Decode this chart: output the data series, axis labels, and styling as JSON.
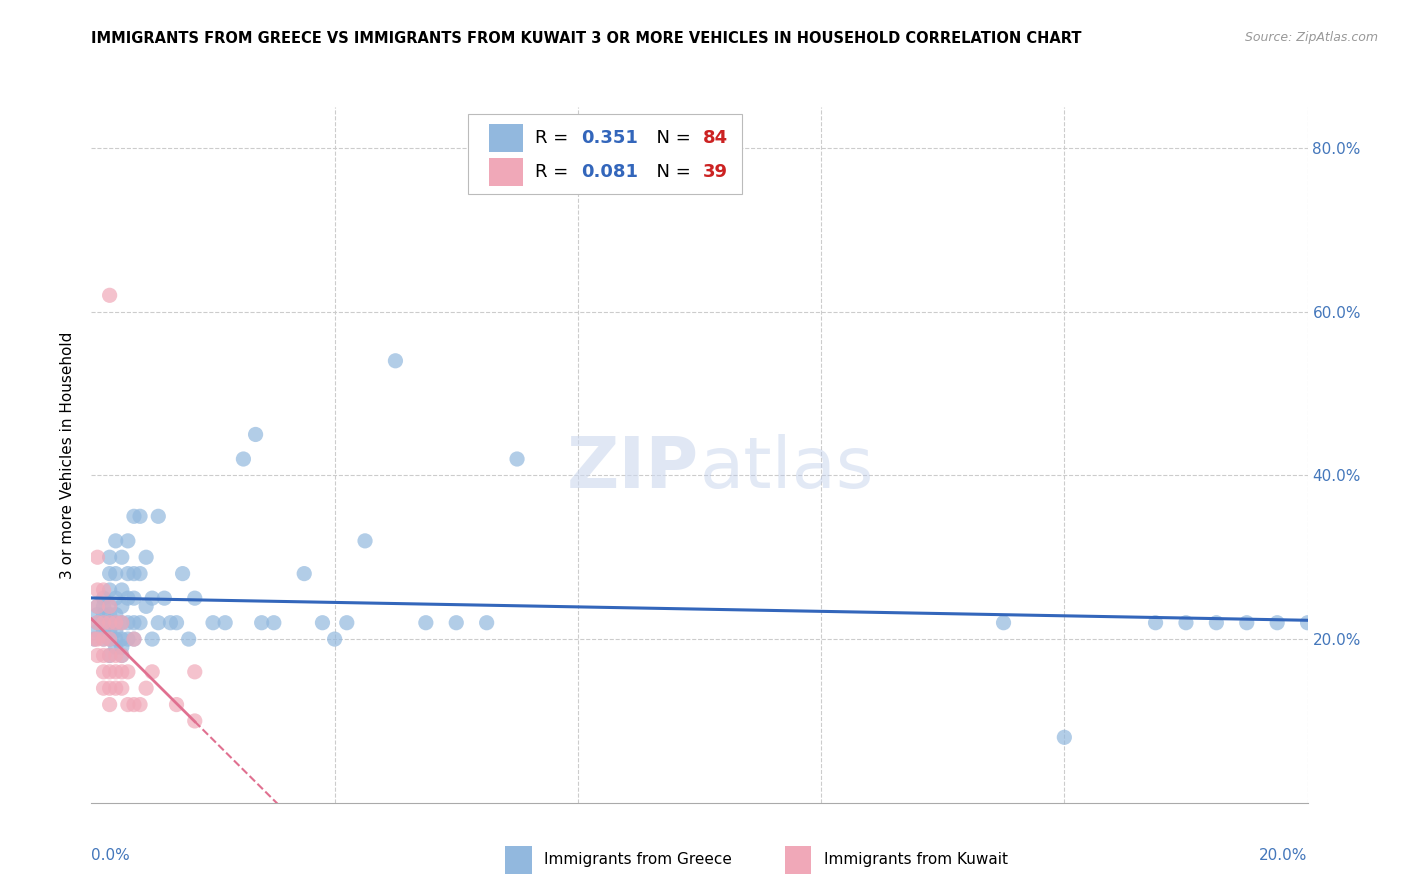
{
  "title": "IMMIGRANTS FROM GREECE VS IMMIGRANTS FROM KUWAIT 3 OR MORE VEHICLES IN HOUSEHOLD CORRELATION CHART",
  "source": "Source: ZipAtlas.com",
  "ylabel": "3 or more Vehicles in Household",
  "greece_color": "#92b8de",
  "kuwait_color": "#f0a8b8",
  "greece_line_color": "#3366bb",
  "kuwait_line_color": "#e07090",
  "background_color": "#ffffff",
  "grid_color": "#cccccc",
  "watermark": "ZIPatlas",
  "R_greece": 0.351,
  "N_greece": 84,
  "R_kuwait": 0.081,
  "N_kuwait": 39,
  "xmin": 0.0,
  "xmax": 0.2,
  "ymin": 0.0,
  "ymax": 0.85,
  "greece_points_x": [
    0.0005,
    0.001,
    0.001,
    0.001,
    0.001,
    0.002,
    0.002,
    0.002,
    0.002,
    0.002,
    0.002,
    0.003,
    0.003,
    0.003,
    0.003,
    0.003,
    0.003,
    0.003,
    0.003,
    0.003,
    0.004,
    0.004,
    0.004,
    0.004,
    0.004,
    0.004,
    0.004,
    0.004,
    0.005,
    0.005,
    0.005,
    0.005,
    0.005,
    0.005,
    0.005,
    0.006,
    0.006,
    0.006,
    0.006,
    0.006,
    0.007,
    0.007,
    0.007,
    0.007,
    0.007,
    0.008,
    0.008,
    0.008,
    0.009,
    0.009,
    0.01,
    0.01,
    0.011,
    0.011,
    0.012,
    0.013,
    0.014,
    0.015,
    0.016,
    0.017,
    0.02,
    0.022,
    0.025,
    0.027,
    0.028,
    0.03,
    0.035,
    0.038,
    0.04,
    0.042,
    0.045,
    0.05,
    0.055,
    0.06,
    0.065,
    0.07,
    0.15,
    0.16,
    0.175,
    0.18,
    0.185,
    0.19,
    0.195,
    0.2
  ],
  "greece_points_y": [
    0.2,
    0.21,
    0.22,
    0.23,
    0.24,
    0.2,
    0.21,
    0.22,
    0.23,
    0.24,
    0.25,
    0.18,
    0.2,
    0.21,
    0.22,
    0.23,
    0.24,
    0.26,
    0.28,
    0.3,
    0.19,
    0.2,
    0.21,
    0.22,
    0.23,
    0.25,
    0.28,
    0.32,
    0.18,
    0.19,
    0.2,
    0.22,
    0.24,
    0.26,
    0.3,
    0.2,
    0.22,
    0.25,
    0.28,
    0.32,
    0.2,
    0.22,
    0.25,
    0.28,
    0.35,
    0.22,
    0.28,
    0.35,
    0.24,
    0.3,
    0.2,
    0.25,
    0.22,
    0.35,
    0.25,
    0.22,
    0.22,
    0.28,
    0.2,
    0.25,
    0.22,
    0.22,
    0.42,
    0.45,
    0.22,
    0.22,
    0.28,
    0.22,
    0.2,
    0.22,
    0.32,
    0.54,
    0.22,
    0.22,
    0.22,
    0.42,
    0.22,
    0.08,
    0.22,
    0.22,
    0.22,
    0.22,
    0.22,
    0.22
  ],
  "kuwait_points_x": [
    0.0005,
    0.001,
    0.001,
    0.001,
    0.001,
    0.001,
    0.001,
    0.002,
    0.002,
    0.002,
    0.002,
    0.002,
    0.002,
    0.003,
    0.003,
    0.003,
    0.003,
    0.003,
    0.003,
    0.003,
    0.003,
    0.004,
    0.004,
    0.004,
    0.004,
    0.005,
    0.005,
    0.005,
    0.005,
    0.006,
    0.006,
    0.007,
    0.007,
    0.008,
    0.009,
    0.01,
    0.014,
    0.017,
    0.017
  ],
  "kuwait_points_y": [
    0.2,
    0.18,
    0.2,
    0.22,
    0.24,
    0.26,
    0.3,
    0.14,
    0.16,
    0.18,
    0.2,
    0.22,
    0.26,
    0.12,
    0.14,
    0.16,
    0.18,
    0.2,
    0.22,
    0.24,
    0.62,
    0.14,
    0.16,
    0.18,
    0.22,
    0.14,
    0.16,
    0.18,
    0.22,
    0.12,
    0.16,
    0.12,
    0.2,
    0.12,
    0.14,
    0.16,
    0.12,
    0.1,
    0.16
  ]
}
